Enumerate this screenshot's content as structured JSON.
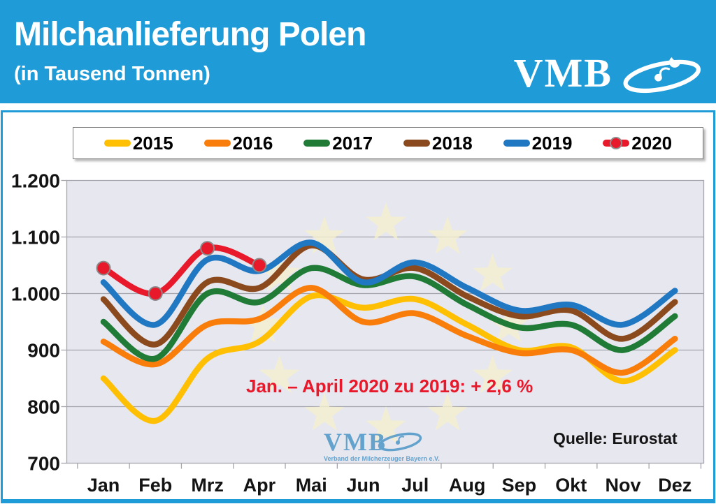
{
  "header": {
    "title": "Milchanlieferung Polen",
    "subtitle": "(in Tausend Tonnen)",
    "logo_text": "VMB"
  },
  "chart_data": {
    "type": "line",
    "title": "Milchanlieferung Polen (in Tausend Tonnen)",
    "categories": [
      "Jan",
      "Feb",
      "Mrz",
      "Apr",
      "Mai",
      "Jun",
      "Jul",
      "Aug",
      "Sep",
      "Okt",
      "Nov",
      "Dez"
    ],
    "series": [
      {
        "name": "2015",
        "color": "#FFC003",
        "values": [
          850,
          775,
          885,
          915,
          995,
          975,
          990,
          945,
          900,
          905,
          845,
          900
        ]
      },
      {
        "name": "2016",
        "color": "#F87D0B",
        "values": [
          915,
          875,
          945,
          955,
          1010,
          950,
          965,
          925,
          895,
          900,
          860,
          920
        ]
      },
      {
        "name": "2017",
        "color": "#1F7B36",
        "values": [
          950,
          885,
          1000,
          985,
          1045,
          1015,
          1030,
          980,
          940,
          945,
          900,
          960
        ]
      },
      {
        "name": "2018",
        "color": "#8B4A1D",
        "values": [
          990,
          910,
          1020,
          1010,
          1085,
          1025,
          1045,
          995,
          960,
          970,
          920,
          985
        ]
      },
      {
        "name": "2019",
        "color": "#2077C2",
        "values": [
          1020,
          945,
          1060,
          1040,
          1090,
          1020,
          1055,
          1010,
          970,
          980,
          945,
          1005
        ]
      },
      {
        "name": "2020",
        "color": "#E8192B",
        "values": [
          1045,
          1000,
          1080,
          1050
        ],
        "markers": true
      }
    ],
    "y_axis": {
      "min": 700,
      "max": 1200,
      "tick_values": [
        700,
        800,
        900,
        1000,
        1100,
        1200
      ],
      "tick_labels": [
        "700",
        "800",
        "900",
        "1.000",
        "1.100",
        "1.200"
      ]
    },
    "legend_position": "top",
    "grid": true,
    "annotation": "Jan. – April 2020 zu 2019: + 2,6 %",
    "source": "Quelle: Eurostat",
    "watermark": {
      "text": "VMB",
      "subtext": "Verband der Milcherzeuger Bayern e.V."
    }
  },
  "colors": {
    "header_bg": "#1F9CD8",
    "panel_border": "#1F9CD8",
    "plot_bg": "#E7E7EF",
    "grid_line": "#A5A5AD",
    "axis_text": "#141414",
    "annotation": "#E8192B",
    "star": "#F5F0CF",
    "watermark_blue": "#4D96C8"
  }
}
